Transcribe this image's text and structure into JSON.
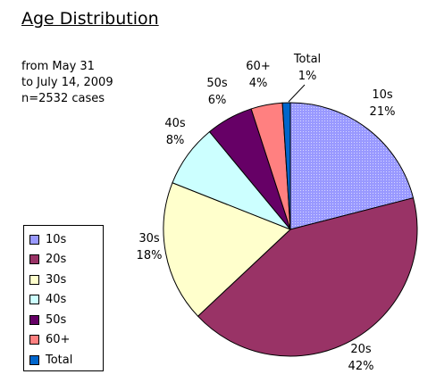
{
  "chart_data": {
    "type": "pie",
    "title": "Age Distribution",
    "subtitle_lines": [
      "from May 31",
      "to July 14, 2009",
      "n=2532 cases"
    ],
    "legend_position": "left",
    "slices": [
      {
        "name": "10s",
        "value": 21,
        "label_pct": "21%",
        "color": "#9999ff",
        "pattern": "dots"
      },
      {
        "name": "20s",
        "value": 42,
        "label_pct": "42%",
        "color": "#993366",
        "pattern": "none"
      },
      {
        "name": "30s",
        "value": 18,
        "label_pct": "18%",
        "color": "#ffffcc",
        "pattern": "none"
      },
      {
        "name": "40s",
        "value": 8,
        "label_pct": "8%",
        "color": "#ccffff",
        "pattern": "none"
      },
      {
        "name": "50s",
        "value": 6,
        "label_pct": "6%",
        "color": "#660066",
        "pattern": "none"
      },
      {
        "name": "60+",
        "value": 4,
        "label_pct": "4%",
        "color": "#ff8080",
        "pattern": "none"
      },
      {
        "name": "Total",
        "value": 1,
        "label_pct": "1%",
        "color": "#0066cc",
        "pattern": "none"
      }
    ]
  }
}
